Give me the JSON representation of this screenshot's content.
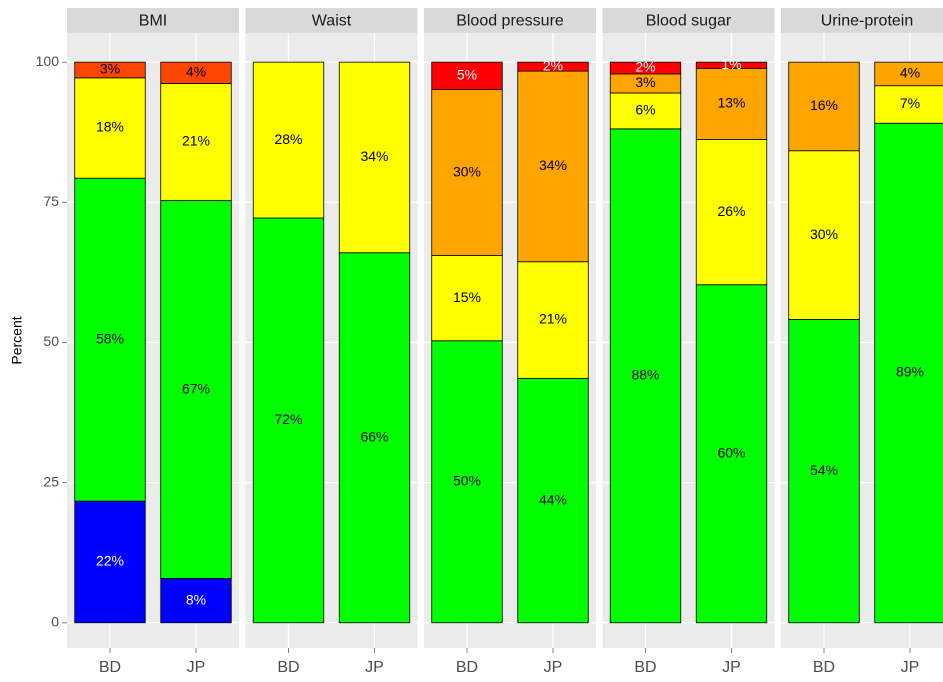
{
  "chart_data": [
    {
      "type": "bar",
      "stacked": true,
      "title": "BMI",
      "ylabel": "Percent",
      "categories": [
        "BD",
        "JP"
      ],
      "ylim": [
        -4.5,
        105.2
      ],
      "yticks": [
        0,
        25,
        50,
        75,
        100
      ],
      "grid": true,
      "series": [
        {
          "color": "#0000ff",
          "values": [
            21.7,
            7.9
          ],
          "value_labels": [
            "22%",
            "8%"
          ]
        },
        {
          "color": "#00ff00",
          "values": [
            57.6,
            67.4
          ],
          "value_labels": [
            "58%",
            "67%"
          ]
        },
        {
          "color": "#ffff00",
          "values": [
            17.9,
            20.9
          ],
          "value_labels": [
            "18%",
            "21%"
          ]
        },
        {
          "color": "#ff4500",
          "values": [
            2.8,
            3.8
          ],
          "value_labels": [
            "3%",
            "4%"
          ]
        }
      ]
    },
    {
      "type": "bar",
      "stacked": true,
      "title": "Waist",
      "categories": [
        "BD",
        "JP"
      ],
      "ylim": [
        -4.5,
        105.2
      ],
      "yticks": [
        0,
        25,
        50,
        75,
        100
      ],
      "grid": true,
      "series": [
        {
          "color": "#00ff00",
          "values": [
            72.2,
            66
          ],
          "value_labels": [
            "72%",
            "66%"
          ]
        },
        {
          "color": "#ffff00",
          "values": [
            27.8,
            34
          ],
          "value_labels": [
            "28%",
            "34%"
          ]
        }
      ]
    },
    {
      "type": "bar",
      "stacked": true,
      "title": "Blood pressure",
      "categories": [
        "BD",
        "JP"
      ],
      "ylim": [
        -4.5,
        105.2
      ],
      "yticks": [
        0,
        25,
        50,
        75,
        100
      ],
      "grid": true,
      "series": [
        {
          "color": "#00ff00",
          "values": [
            50.3,
            43.6
          ],
          "value_labels": [
            "50%",
            "44%"
          ]
        },
        {
          "color": "#ffff00",
          "values": [
            15.2,
            20.8
          ],
          "value_labels": [
            "15%",
            "21%"
          ]
        },
        {
          "color": "#ffa500",
          "values": [
            29.6,
            34.0
          ],
          "value_labels": [
            "30%",
            "34%"
          ]
        },
        {
          "color": "#ff0000",
          "values": [
            4.9,
            1.6
          ],
          "value_labels": [
            "5%",
            "2%"
          ]
        }
      ]
    },
    {
      "type": "bar",
      "stacked": true,
      "title": "Blood sugar",
      "categories": [
        "BD",
        "JP"
      ],
      "ylim": [
        -4.5,
        105.2
      ],
      "yticks": [
        0,
        25,
        50,
        75,
        100
      ],
      "grid": true,
      "series": [
        {
          "color": "#00ff00",
          "values": [
            88.1,
            60.3
          ],
          "value_labels": [
            "88%",
            "60%"
          ]
        },
        {
          "color": "#ffff00",
          "values": [
            6.4,
            25.9
          ],
          "value_labels": [
            "6%",
            "26%"
          ]
        },
        {
          "color": "#ffa500",
          "values": [
            3.4,
            12.7
          ],
          "value_labels": [
            "3%",
            "13%"
          ]
        },
        {
          "color": "#ff0000",
          "values": [
            2.1,
            1.1
          ],
          "value_labels": [
            "2%",
            "1%"
          ]
        }
      ]
    },
    {
      "type": "bar",
      "stacked": true,
      "title": "Urine-protein",
      "categories": [
        "BD",
        "JP"
      ],
      "ylim": [
        -4.5,
        105.2
      ],
      "yticks": [
        0,
        25,
        50,
        75,
        100
      ],
      "grid": true,
      "series": [
        {
          "color": "#00ff00",
          "values": [
            54.1,
            89.1
          ],
          "value_labels": [
            "54%",
            "89%"
          ]
        },
        {
          "color": "#ffff00",
          "values": [
            30.1,
            6.7
          ],
          "value_labels": [
            "30%",
            "7%"
          ]
        },
        {
          "color": "#ffa500",
          "values": [
            15.8,
            4.2
          ],
          "value_labels": [
            "16%",
            "4%"
          ]
        }
      ]
    }
  ]
}
